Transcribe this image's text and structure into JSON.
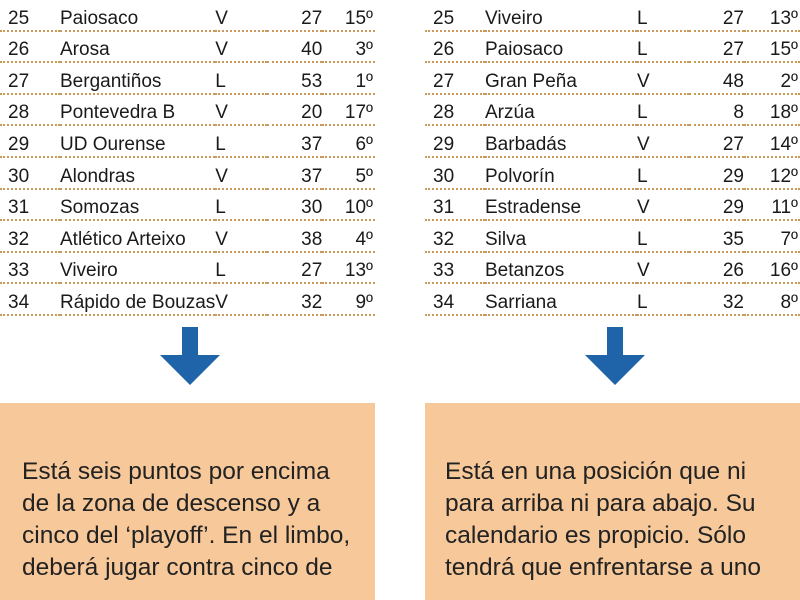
{
  "left_table": {
    "rows": [
      {
        "round": "25",
        "team": "Paiosaco",
        "venue": "V",
        "points": "27",
        "position": "15º"
      },
      {
        "round": "26",
        "team": "Arosa",
        "venue": "V",
        "points": "40",
        "position": "3º"
      },
      {
        "round": "27",
        "team": "Bergantiños",
        "venue": "L",
        "points": "53",
        "position": "1º"
      },
      {
        "round": "28",
        "team": "Pontevedra B",
        "venue": "V",
        "points": "20",
        "position": "17º"
      },
      {
        "round": "29",
        "team": "UD Ourense",
        "venue": "L",
        "points": "37",
        "position": "6º"
      },
      {
        "round": "30",
        "team": "Alondras",
        "venue": "V",
        "points": "37",
        "position": "5º"
      },
      {
        "round": "31",
        "team": "Somozas",
        "venue": "L",
        "points": "30",
        "position": "10º"
      },
      {
        "round": "32",
        "team": "Atlético Arteixo",
        "venue": "V",
        "points": "38",
        "position": "4º"
      },
      {
        "round": "33",
        "team": "Viveiro",
        "venue": "L",
        "points": "27",
        "position": "13º"
      },
      {
        "round": "34",
        "team": "Rápido de Bouzas",
        "venue": "V",
        "points": "32",
        "position": "9º"
      }
    ]
  },
  "right_table": {
    "rows": [
      {
        "round": "25",
        "team": "Viveiro",
        "venue": "L",
        "points": "27",
        "position": "13º"
      },
      {
        "round": "26",
        "team": "Paiosaco",
        "venue": "L",
        "points": "27",
        "position": "15º"
      },
      {
        "round": "27",
        "team": "Gran Peña",
        "venue": "V",
        "points": "48",
        "position": "2º"
      },
      {
        "round": "28",
        "team": "Arzúa",
        "venue": "L",
        "points": "8",
        "position": "18º"
      },
      {
        "round": "29",
        "team": "Barbadás",
        "venue": "V",
        "points": "27",
        "position": "14º"
      },
      {
        "round": "30",
        "team": "Polvorín",
        "venue": "L",
        "points": "29",
        "position": "12º"
      },
      {
        "round": "31",
        "team": "Estradense",
        "venue": "V",
        "points": "29",
        "position": "11º"
      },
      {
        "round": "32",
        "team": "Silva",
        "venue": "L",
        "points": "35",
        "position": "7º"
      },
      {
        "round": "33",
        "team": "Betanzos",
        "venue": "V",
        "points": "26",
        "position": "16º"
      },
      {
        "round": "34",
        "team": "Sarriana",
        "venue": "L",
        "points": "32",
        "position": "8º"
      }
    ]
  },
  "left_note": {
    "lines": [
      "Está seis puntos por encima",
      "de la zona de descenso y a",
      "cinco del ‘playoff’. En el limbo,",
      "deberá jugar contra cinco de"
    ]
  },
  "right_note": {
    "lines": [
      "Está en una posición que ni",
      "para arriba ni para abajo. Su",
      "calendario es propicio. Sólo",
      "tendrá que enfrentarse a uno"
    ]
  },
  "icons": {
    "left_arrow": "arrow-down-icon",
    "right_arrow": "arrow-down-icon"
  },
  "colors": {
    "arrow": "#1f64a8",
    "note_background": "#f7c99a",
    "row_divider": "#c99a5a"
  }
}
